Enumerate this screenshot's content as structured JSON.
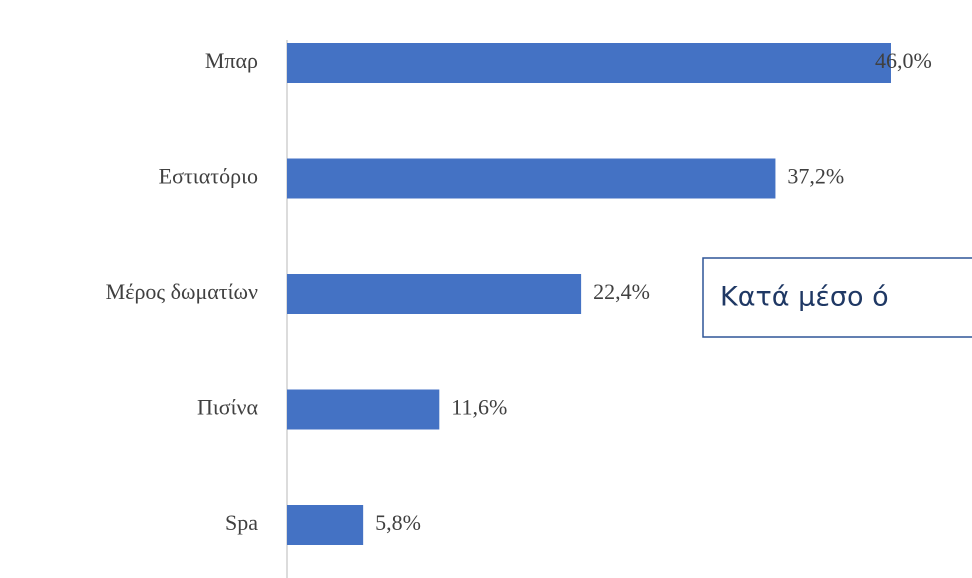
{
  "chart_data": {
    "type": "bar",
    "orientation": "horizontal",
    "categories": [
      "Μπαρ",
      "Εστιατόριο",
      "Μέρος δωματίων",
      "Πισίνα",
      "Spa"
    ],
    "values": [
      46.0,
      37.2,
      22.4,
      11.6,
      5.8
    ],
    "value_labels": [
      "46,0%",
      "37,2%",
      "22,4%",
      "11,6%",
      "5,8%"
    ],
    "color": "#4472c4",
    "annotation": "Κατά μέσο ό"
  }
}
